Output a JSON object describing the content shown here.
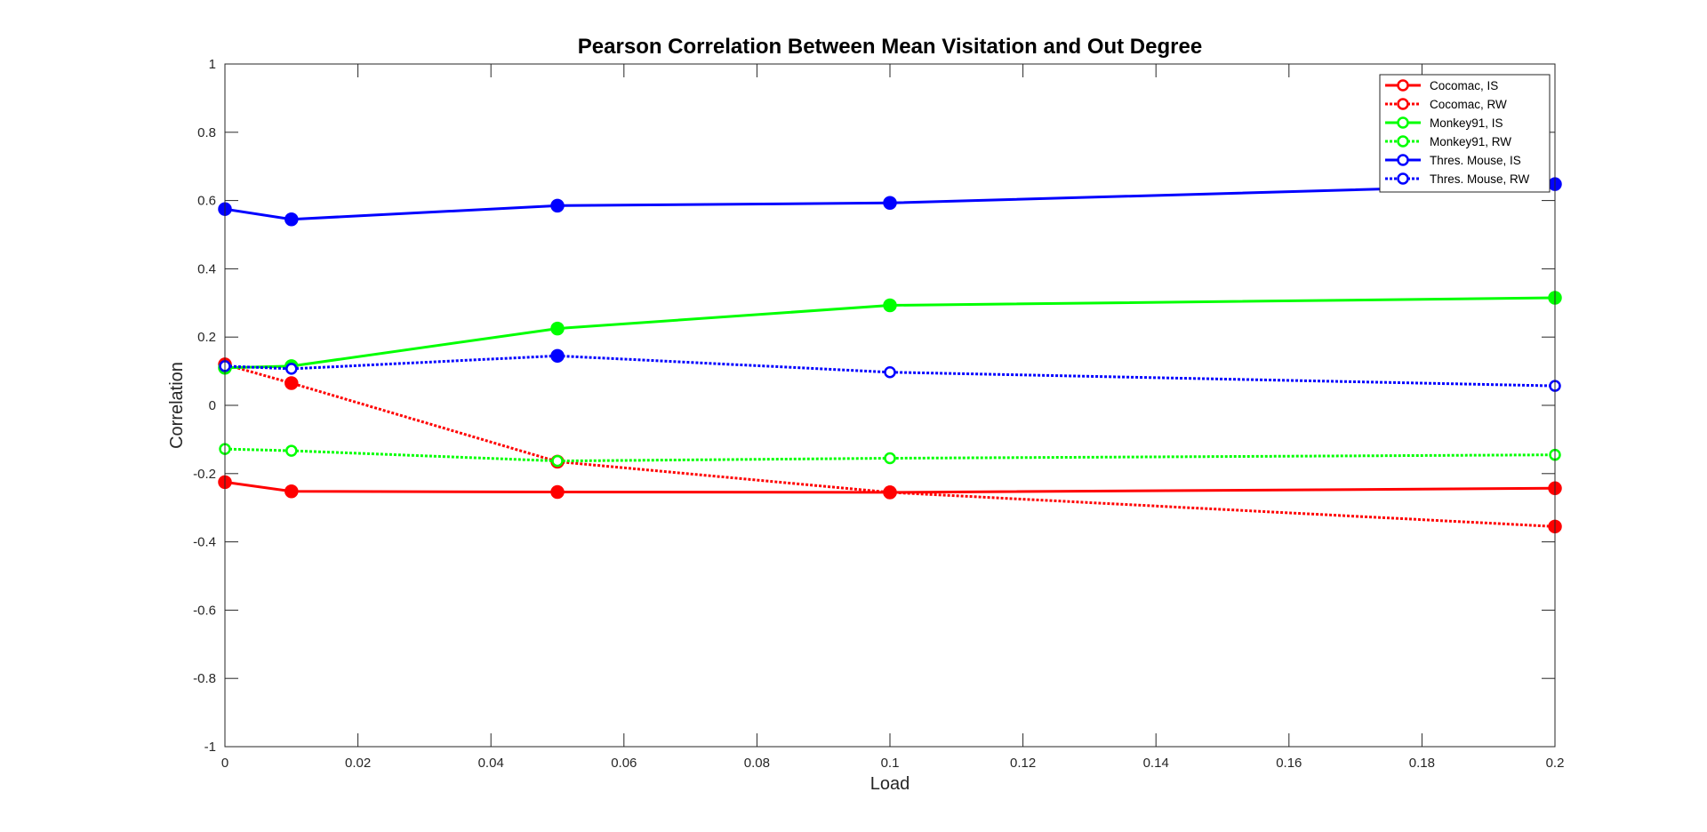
{
  "chart_data": {
    "type": "line",
    "title": "Pearson Correlation Between Mean Visitation and Out Degree",
    "xlabel": "Load",
    "ylabel": "Correlation",
    "xlim": [
      0,
      0.2
    ],
    "ylim": [
      -1,
      1
    ],
    "xticks": [
      "0",
      "0.02",
      "0.04",
      "0.06",
      "0.08",
      "0.1",
      "0.12",
      "0.14",
      "0.16",
      "0.18",
      "0.2"
    ],
    "yticks": [
      "-1",
      "-0.8",
      "-0.6",
      "-0.4",
      "-0.2",
      "0",
      "0.2",
      "0.4",
      "0.6",
      "0.8",
      "1"
    ],
    "grid": false,
    "legend_position": "top-right",
    "x": [
      0,
      0.01,
      0.05,
      0.1,
      0.2
    ],
    "series": [
      {
        "name": "Cocomac, IS",
        "color": "#ff0000",
        "style": "solid",
        "values": [
          -0.225,
          -0.252,
          -0.254,
          -0.255,
          -0.243
        ]
      },
      {
        "name": "Cocomac, RW",
        "color": "#ff0000",
        "style": "dotted",
        "values": [
          0.12,
          0.065,
          -0.165,
          -0.255,
          -0.355
        ]
      },
      {
        "name": "Monkey91, IS",
        "color": "#00ff00",
        "style": "solid",
        "values": [
          0.11,
          0.115,
          0.225,
          0.293,
          0.315
        ]
      },
      {
        "name": "Monkey91, RW",
        "color": "#00ff00",
        "style": "dotted",
        "values": [
          -0.128,
          -0.133,
          -0.163,
          -0.155,
          -0.145
        ]
      },
      {
        "name": "Thres. Mouse, IS",
        "color": "#0000ff",
        "style": "solid",
        "values": [
          0.575,
          0.545,
          0.585,
          0.593,
          0.648
        ]
      },
      {
        "name": "Thres. Mouse, RW",
        "color": "#0000ff",
        "style": "dotted",
        "values": [
          0.115,
          0.107,
          0.145,
          0.097,
          0.057
        ]
      }
    ]
  }
}
